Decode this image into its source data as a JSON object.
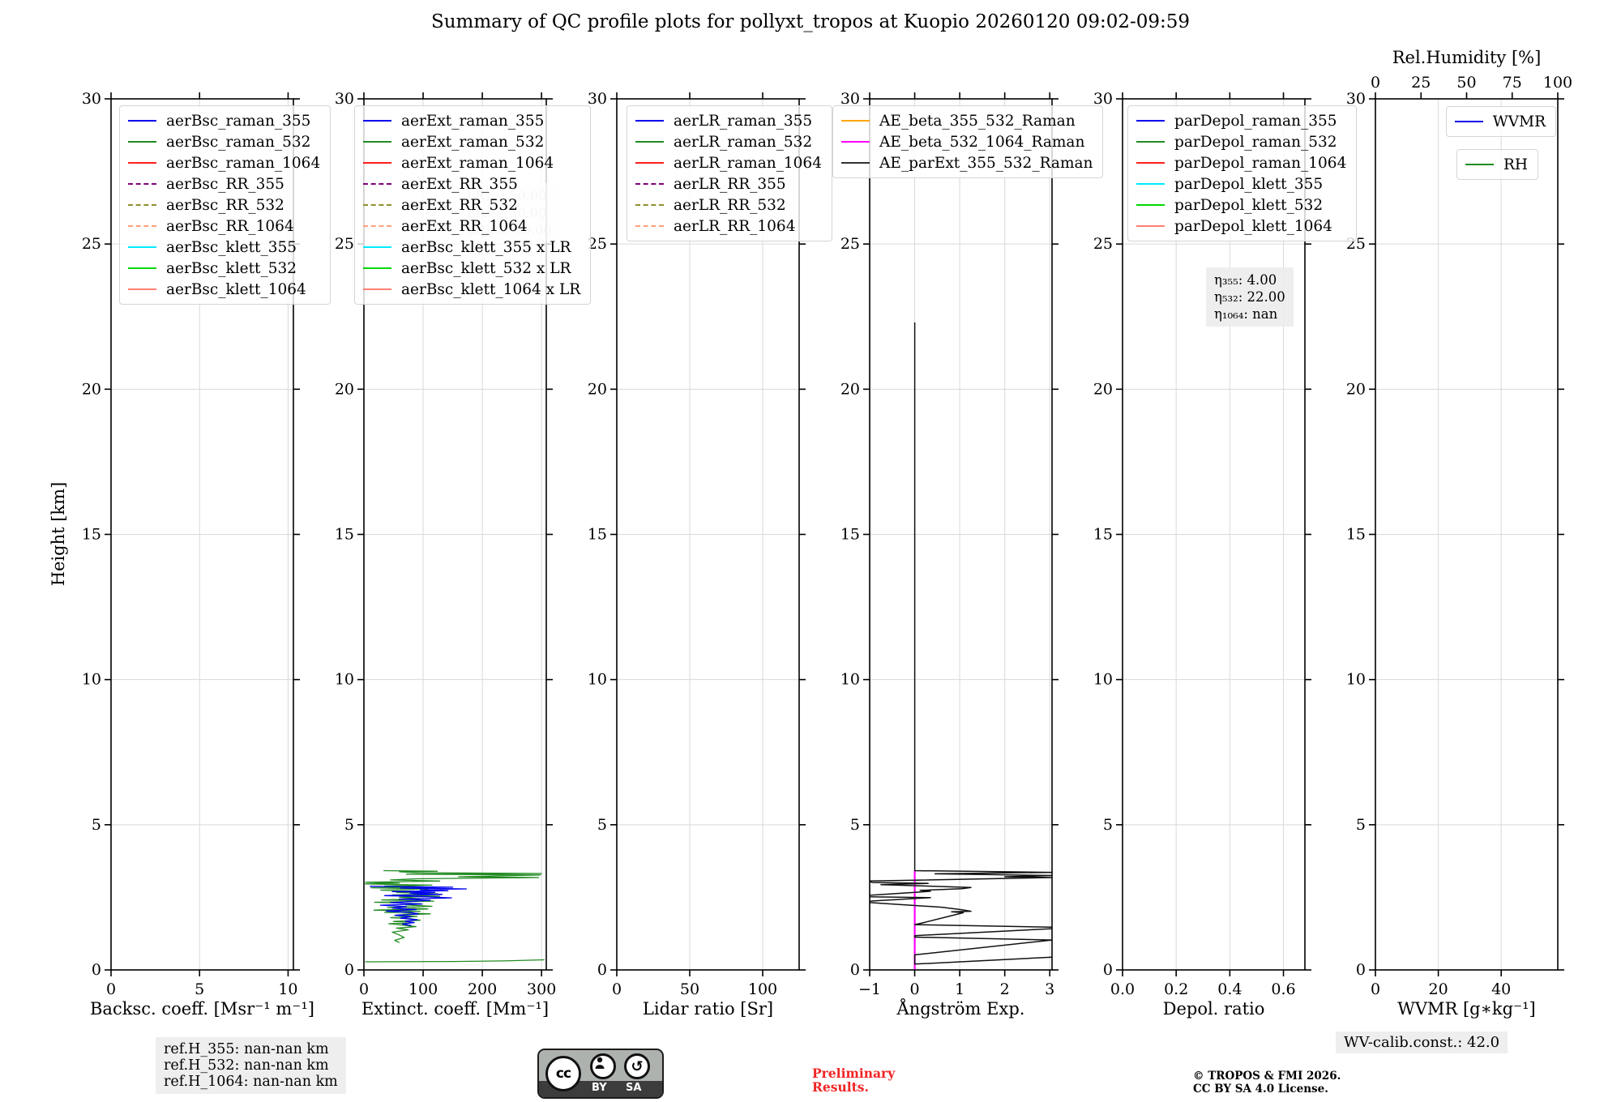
{
  "title": "Summary of QC profile plots for pollyxt_tropos at Kuopio 20260120 09:02-09:59",
  "y_axis": {
    "label": "Height [km]",
    "lim": [
      0,
      30
    ],
    "ticks": [
      0,
      5,
      10,
      15,
      20,
      25,
      30
    ]
  },
  "colors": {
    "accent_red": "#f12525",
    "grid": "#d9d9d9",
    "axis": "#000000"
  },
  "chart_data": {
    "type": "line",
    "ylabel": "Height [km]",
    "ylim": [
      0,
      30
    ],
    "yticks": [
      0,
      5,
      10,
      15,
      20,
      25,
      30
    ],
    "grid": true,
    "panels": [
      {
        "id": "backscatter",
        "xlabel": "Backsc. coeff. [Msr⁻¹ m⁻¹]",
        "xlim": [
          0,
          10.3
        ],
        "xticks": [
          0,
          5,
          10
        ],
        "xtick_labels": [
          "0",
          "5",
          "10"
        ],
        "legend": [
          {
            "label": "aerBsc_raman_355",
            "color": "#0000ee",
            "dash": false
          },
          {
            "label": "aerBsc_raman_532",
            "color": "#228b22",
            "dash": false
          },
          {
            "label": "aerBsc_raman_1064",
            "color": "#ff1f1f",
            "dash": false
          },
          {
            "label": "aerBsc_RR_355",
            "color": "#800080",
            "dash": true
          },
          {
            "label": "aerBsc_RR_532",
            "color": "#8f8f2d",
            "dash": true
          },
          {
            "label": "aerBsc_RR_1064",
            "color": "#ffa07a",
            "dash": true
          },
          {
            "label": "aerBsc_klett_355",
            "color": "#00eaff",
            "dash": false
          },
          {
            "label": "aerBsc_klett_532",
            "color": "#00d800",
            "dash": false
          },
          {
            "label": "aerBsc_klett_1064",
            "color": "#fa8072",
            "dash": false
          }
        ],
        "series": []
      },
      {
        "id": "extinction",
        "xlabel": "Extinct. coeff. [Mm⁻¹]",
        "xlim": [
          0,
          308
        ],
        "xticks": [
          0,
          100,
          200,
          300
        ],
        "xtick_labels": [
          "0",
          "100",
          "200",
          "300"
        ],
        "legend": [
          {
            "label": "aerExt_raman_355",
            "color": "#0000ee",
            "dash": false
          },
          {
            "label": "aerExt_raman_532",
            "color": "#228b22",
            "dash": false
          },
          {
            "label": "aerExt_raman_1064",
            "color": "#ff1f1f",
            "dash": false
          },
          {
            "label": "aerExt_RR_355",
            "color": "#800080",
            "dash": true
          },
          {
            "label": "aerExt_RR_532",
            "color": "#8f8f2d",
            "dash": true
          },
          {
            "label": "aerExt_RR_1064",
            "color": "#ffa07a",
            "dash": true
          },
          {
            "label": "aerBsc_klett_355 x LR",
            "color": "#00eaff",
            "dash": false
          },
          {
            "label": "aerBsc_klett_532 x LR",
            "color": "#00d800",
            "dash": false
          },
          {
            "label": "aerBsc_klett_1064 x LR",
            "color": "#fa8072",
            "dash": false
          }
        ],
        "series": [
          {
            "name": "aerExt_raman_532",
            "color": "#228b22",
            "width": 1.3,
            "points": [
              [
                33,
                3.42
              ],
              [
                124,
                3.4
              ],
              [
                60,
                3.38
              ],
              [
                90,
                3.35
              ],
              [
                300,
                3.32
              ],
              [
                72,
                3.3
              ],
              [
                298,
                3.27
              ],
              [
                230,
                3.24
              ],
              [
                160,
                3.21
              ],
              [
                295,
                3.18
              ],
              [
                90,
                3.14
              ],
              [
                45,
                3.1
              ],
              [
                128,
                3.06
              ],
              [
                3,
                3.02
              ],
              [
                60,
                2.99
              ],
              [
                2,
                2.96
              ],
              [
                115,
                2.92
              ],
              [
                35,
                2.89
              ],
              [
                100,
                2.86
              ],
              [
                12,
                2.83
              ],
              [
                108,
                2.79
              ],
              [
                28,
                2.75
              ],
              [
                85,
                2.71
              ],
              [
                55,
                2.67
              ],
              [
                125,
                2.62
              ],
              [
                48,
                2.58
              ],
              [
                128,
                2.54
              ],
              [
                60,
                2.5
              ],
              [
                95,
                2.45
              ],
              [
                30,
                2.41
              ],
              [
                118,
                2.37
              ],
              [
                18,
                2.33
              ],
              [
                95,
                2.28
              ],
              [
                70,
                2.24
              ],
              [
                115,
                2.19
              ],
              [
                40,
                2.15
              ],
              [
                108,
                2.1
              ],
              [
                17,
                2.06
              ],
              [
                95,
                2.02
              ],
              [
                35,
                1.98
              ],
              [
                112,
                1.93
              ],
              [
                55,
                1.89
              ],
              [
                90,
                1.84
              ],
              [
                45,
                1.8
              ],
              [
                80,
                1.76
              ],
              [
                95,
                1.71
              ],
              [
                50,
                1.67
              ],
              [
                85,
                1.63
              ],
              [
                42,
                1.59
              ],
              [
                68,
                1.54
              ],
              [
                88,
                1.49
              ],
              [
                55,
                1.44
              ],
              [
                75,
                1.38
              ],
              [
                48,
                1.3
              ],
              [
                58,
                1.22
              ],
              [
                68,
                1.12
              ],
              [
                52,
                1.02
              ],
              [
                60,
                0.94
              ]
            ]
          },
          {
            "name": "aerExt_raman_532_near_ground",
            "color": "#228b22",
            "width": 1.3,
            "points": [
              [
                2,
                0.28
              ],
              [
                150,
                0.29
              ],
              [
                235,
                0.31
              ],
              [
                305,
                0.35
              ]
            ]
          },
          {
            "name": "aerExt_raman_355",
            "color": "#0000ee",
            "width": 1.3,
            "points": [
              [
                10,
                2.88
              ],
              [
                150,
                2.85
              ],
              [
                62,
                2.82
              ],
              [
                173,
                2.79
              ],
              [
                95,
                2.76
              ],
              [
                142,
                2.73
              ],
              [
                48,
                2.7
              ],
              [
                120,
                2.67
              ],
              [
                78,
                2.64
              ],
              [
                132,
                2.6
              ],
              [
                35,
                2.56
              ],
              [
                105,
                2.52
              ],
              [
                148,
                2.48
              ],
              [
                60,
                2.44
              ],
              [
                112,
                2.4
              ],
              [
                82,
                2.36
              ],
              [
                45,
                2.32
              ],
              [
                98,
                2.27
              ],
              [
                28,
                2.23
              ],
              [
                72,
                2.18
              ],
              [
                48,
                2.13
              ],
              [
                88,
                2.08
              ],
              [
                38,
                2.03
              ],
              [
                78,
                1.98
              ],
              [
                92,
                1.93
              ],
              [
                52,
                1.88
              ],
              [
                80,
                1.83
              ],
              [
                62,
                1.78
              ],
              [
                90,
                1.73
              ],
              [
                70,
                1.68
              ],
              [
                85,
                1.63
              ],
              [
                65,
                1.58
              ],
              [
                80,
                1.53
              ]
            ]
          }
        ]
      },
      {
        "id": "lidar-ratio",
        "xlabel": "Lidar ratio [Sr]",
        "xlim": [
          0,
          125
        ],
        "xticks": [
          0,
          50,
          100
        ],
        "xtick_labels": [
          "0",
          "50",
          "100"
        ],
        "legend": [
          {
            "label": "aerLR_raman_355",
            "color": "#0000ee",
            "dash": false
          },
          {
            "label": "aerLR_raman_532",
            "color": "#228b22",
            "dash": false
          },
          {
            "label": "aerLR_raman_1064",
            "color": "#ff1f1f",
            "dash": false
          },
          {
            "label": "aerLR_RR_355",
            "color": "#800080",
            "dash": true
          },
          {
            "label": "aerLR_RR_532",
            "color": "#8f8f2d",
            "dash": true
          },
          {
            "label": "aerLR_RR_1064",
            "color": "#ffa07a",
            "dash": true
          }
        ],
        "series": []
      },
      {
        "id": "angstroem",
        "xlabel": "Ångström Exp.",
        "xlim": [
          -1,
          3.05
        ],
        "xticks": [
          -1,
          0,
          1,
          2,
          3
        ],
        "xtick_labels": [
          "−1",
          "0",
          "1",
          "2",
          "3"
        ],
        "legend": [
          {
            "label": "AE_beta_355_532_Raman",
            "color": "#ffa500",
            "dash": false
          },
          {
            "label": "AE_beta_532_1064_Raman",
            "color": "#ff00ff",
            "dash": false
          },
          {
            "label": "AE_parExt_355_532_Raman",
            "color": "#333333",
            "dash": false
          }
        ],
        "series": [
          {
            "name": "AE_beta_532_1064_Raman",
            "color": "#ff00ff",
            "width": 2.2,
            "points": [
              [
                0,
                0.0
              ],
              [
                0,
                3.42
              ]
            ]
          },
          {
            "name": "AE_parExt_355_532_Raman",
            "color": "#111111",
            "width": 1.5,
            "points": [
              [
                0,
                22.3
              ],
              [
                0,
                3.42
              ],
              [
                3.05,
                3.36
              ],
              [
                0.45,
                3.31
              ],
              [
                3.05,
                3.25
              ],
              [
                2.0,
                3.21
              ],
              [
                3.05,
                3.18
              ],
              [
                -1,
                3.06
              ],
              [
                -0.95,
                3.01
              ],
              [
                0.3,
                2.98
              ],
              [
                -0.75,
                2.94
              ],
              [
                1.25,
                2.84
              ],
              [
                1.05,
                2.8
              ],
              [
                0.12,
                2.74
              ],
              [
                0.35,
                2.71
              ],
              [
                0.08,
                2.68
              ],
              [
                -1,
                2.57
              ],
              [
                -1,
                2.52
              ],
              [
                0.35,
                2.49
              ],
              [
                -1,
                2.37
              ],
              [
                -1,
                2.32
              ],
              [
                0.6,
                2.16
              ],
              [
                1.05,
                2.07
              ],
              [
                1.25,
                2.02
              ],
              [
                0.82,
                2.0
              ],
              [
                1.08,
                1.97
              ],
              [
                0.2,
                1.63
              ],
              [
                0,
                1.56
              ],
              [
                3.05,
                1.47
              ],
              [
                3.05,
                1.42
              ],
              [
                0,
                1.18
              ],
              [
                0,
                1.13
              ],
              [
                3.05,
                1.03
              ],
              [
                0,
                0.52
              ],
              [
                0,
                0.2
              ],
              [
                3.05,
                0.44
              ]
            ]
          }
        ]
      },
      {
        "id": "depol-ratio",
        "xlabel": "Depol. ratio",
        "xlim": [
          0,
          0.68
        ],
        "xticks": [
          0,
          0.2,
          0.4,
          0.6
        ],
        "xtick_labels": [
          "0.0",
          "0.2",
          "0.4",
          "0.6"
        ],
        "legend": [
          {
            "label": "parDepol_raman_355",
            "color": "#0000ee",
            "dash": false
          },
          {
            "label": "parDepol_raman_532",
            "color": "#228b22",
            "dash": false
          },
          {
            "label": "parDepol_raman_1064",
            "color": "#ff1f1f",
            "dash": false
          },
          {
            "label": "parDepol_klett_355",
            "color": "#00eaff",
            "dash": false
          },
          {
            "label": "parDepol_klett_532",
            "color": "#00d800",
            "dash": false
          },
          {
            "label": "parDepol_klett_1064",
            "color": "#fa8072",
            "dash": false
          }
        ],
        "series": []
      },
      {
        "id": "wvmr",
        "xlabel": "WVMR [g∗kg⁻¹]",
        "xlim": [
          0,
          58
        ],
        "xticks": [
          0,
          20,
          40
        ],
        "xtick_labels": [
          "0",
          "20",
          "40"
        ],
        "top_axis": {
          "label": "Rel.Humidity [%]",
          "lim": [
            0,
            100
          ],
          "ticks": [
            0,
            25,
            50,
            75,
            100
          ],
          "tick_labels": [
            "0",
            "25",
            "50",
            "75",
            "100"
          ]
        },
        "legend": [
          {
            "label": "WVMR",
            "color": "#0000ee",
            "dash": false
          },
          {
            "label": "RH",
            "color": "#228b22",
            "dash": false
          }
        ],
        "series": []
      }
    ]
  },
  "annotations": {
    "lr_assumption": {
      "lines": [
        "LR₃₅₅: 50.00",
        "LR₅₃₂: 50.00",
        "LR₁₀₆₄: 50.00"
      ]
    },
    "eta": {
      "lines": [
        "η₃₅₅: 4.00",
        "η₅₃₂: 22.00",
        "η₁₀₆₄: nan"
      ]
    },
    "refh": {
      "lines": [
        "ref.H_355: nan-nan km",
        "ref.H_532: nan-nan km",
        "ref.H_1064: nan-nan km"
      ]
    }
  },
  "footer": {
    "preliminary": [
      "Preliminary",
      "Results."
    ],
    "copyright": [
      "© TROPOS & FMI 2026.",
      "CC BY SA 4.0 License."
    ],
    "wv_calib": "WV-calib.const.: 42.0",
    "cc_badge": {
      "cc": "cc",
      "by": "BY",
      "sa": "SA"
    }
  }
}
